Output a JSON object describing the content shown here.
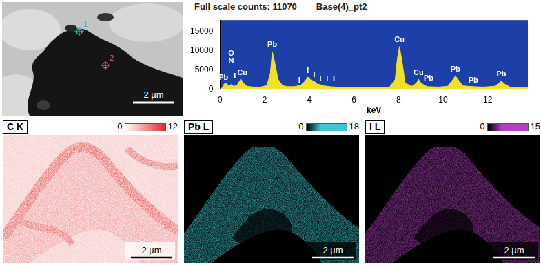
{
  "chart_data": {
    "type": "area",
    "title": "Full scale counts: 11070",
    "subtitle": "Base(4)_pt2",
    "x_label": "keV",
    "x": [
      0,
      0.1,
      0.18,
      0.28,
      0.39,
      0.52,
      0.6,
      0.75,
      0.93,
      1.05,
      1.2,
      1.5,
      1.8,
      2.1,
      2.25,
      2.34,
      2.45,
      2.6,
      2.8,
      3.0,
      3.3,
      3.6,
      3.8,
      3.94,
      4.05,
      4.22,
      4.35,
      4.5,
      4.65,
      4.8,
      5.0,
      5.4,
      6.0,
      6.5,
      7.0,
      7.6,
      7.85,
      7.95,
      8.04,
      8.15,
      8.3,
      8.6,
      8.8,
      8.9,
      9.0,
      9.18,
      9.3,
      9.8,
      10.2,
      10.45,
      10.55,
      10.7,
      10.9,
      11.35,
      11.8,
      12.3,
      12.5,
      12.61,
      12.75,
      13.0,
      13.4,
      13.8
    ],
    "values": [
      0,
      300,
      1300,
      1500,
      800,
      1200,
      700,
      900,
      2600,
      1500,
      700,
      500,
      500,
      900,
      4000,
      9700,
      7000,
      2500,
      900,
      600,
      600,
      900,
      2000,
      3100,
      2400,
      2000,
      1300,
      1100,
      800,
      700,
      550,
      450,
      400,
      400,
      400,
      500,
      2500,
      8000,
      11070,
      7500,
      1500,
      700,
      1500,
      2500,
      1600,
      900,
      600,
      500,
      700,
      2500,
      3400,
      2200,
      800,
      600,
      500,
      700,
      1500,
      2100,
      1300,
      500,
      400,
      300
    ],
    "color": "#f2e025",
    "xlim": [
      0,
      13.8
    ],
    "xticks": [
      0,
      2,
      4,
      6,
      8,
      10,
      12
    ],
    "ylim": [
      0,
      18000
    ],
    "yticks": [
      0,
      5000,
      10000,
      15000
    ],
    "grid": false,
    "annotations": [
      {
        "text": "Pb",
        "x": 0.15,
        "y": 1900
      },
      {
        "text": "O",
        "x": 0.5,
        "y": 8300
      },
      {
        "text": "N",
        "x": 0.5,
        "y": 6300
      },
      {
        "text": "I",
        "x": 0.66,
        "y": 2300
      },
      {
        "text": "Cu",
        "x": 1.0,
        "y": 3200
      },
      {
        "text": "Pb",
        "x": 2.34,
        "y": 10500
      },
      {
        "text": "I",
        "x": 3.55,
        "y": 1300
      },
      {
        "text": "I",
        "x": 3.94,
        "y": 3700
      },
      {
        "text": "I",
        "x": 4.22,
        "y": 2600
      },
      {
        "text": "I",
        "x": 4.5,
        "y": 1500
      },
      {
        "text": "I",
        "x": 4.8,
        "y": 1500
      },
      {
        "text": "I",
        "x": 5.1,
        "y": 1500
      },
      {
        "text": "Cu",
        "x": 8.04,
        "y": 11800
      },
      {
        "text": "Cu",
        "x": 8.9,
        "y": 3200
      },
      {
        "text": "Pb",
        "x": 9.35,
        "y": 1800
      },
      {
        "text": "Pb",
        "x": 10.55,
        "y": 4100
      },
      {
        "text": "Pb",
        "x": 11.35,
        "y": 1200
      },
      {
        "text": "Pb",
        "x": 12.61,
        "y": 2800
      }
    ]
  },
  "image": {
    "scale_bar": "2 µm",
    "markers": [
      {
        "label": "1",
        "color": "#20c0d0"
      },
      {
        "label": "2",
        "color": "#e06080"
      }
    ]
  },
  "maps": [
    {
      "label": "C K",
      "color": "#e02828",
      "scale_min": 0,
      "scale_max": 12,
      "scale_bar": "2 µm"
    },
    {
      "label": "Pb L",
      "color": "#3cc8d0",
      "scale_min": 0,
      "scale_max": 18,
      "scale_bar": "2 µm"
    },
    {
      "label": "I L",
      "color": "#b040c0",
      "scale_min": 0,
      "scale_max": 15,
      "scale_bar": "2 µm"
    }
  ]
}
